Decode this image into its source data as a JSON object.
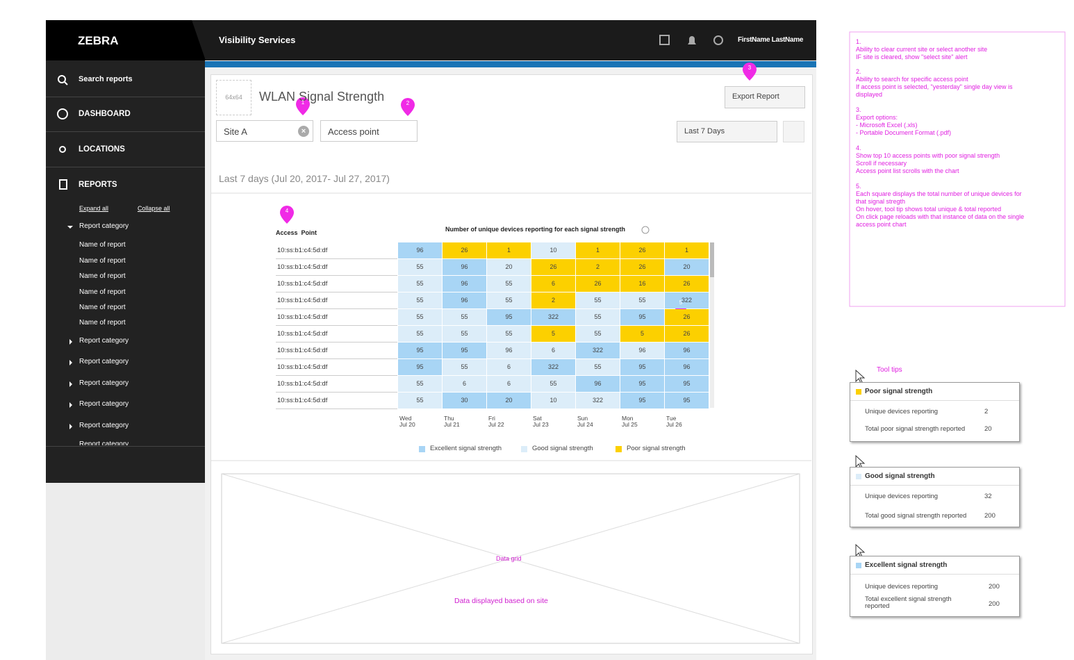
{
  "header": {
    "logo": "ZEBRA",
    "app_title": "Visibility Services",
    "user": "FirstName LastName"
  },
  "sidebar": {
    "search": "Search reports",
    "nav": [
      "DASHBOARD",
      "LOCATIONS",
      "REPORTS"
    ],
    "expand": "Expand all",
    "collapse": "Collapse all",
    "open_category": "Report category",
    "reports": [
      "Name of report",
      "Name of report",
      "Name of report",
      "Name of report",
      "Name of report",
      "Name of report"
    ],
    "categories": [
      "Report category",
      "Report category",
      "Report category",
      "Report category",
      "Report category",
      "Report category"
    ]
  },
  "report": {
    "placeholder": "64x64",
    "title": "WLAN Signal Strength",
    "site": "Site A",
    "search": "Access point",
    "export": "Export Report",
    "range": "Last 7 Days",
    "period": "Last 7 days (Jul 20, 2017- Jul 27, 2017)"
  },
  "heatmap": {
    "row_header": "Access  Point",
    "title": "Number of unique devices reporting for each signal strength",
    "rows": [
      "10:ss:b1:c4:5d:df",
      "10:ss:b1:c4:5d:df",
      "10:ss:b1:c4:5d:df",
      "10:ss:b1:c4:5d:df",
      "10:ss:b1:c4:5d:df",
      "10:ss:b1:c4:5d:df",
      "10:ss:b1:c4:5d:df",
      "10:ss:b1:c4:5d:df",
      "10:ss:b1:c4:5d:df",
      "10:ss:b1:c4:5d:df"
    ],
    "days": [
      {
        "day": "Wed",
        "date": "Jul 20"
      },
      {
        "day": "Thu",
        "date": "Jul 21"
      },
      {
        "day": "Fri",
        "date": "Jul 22"
      },
      {
        "day": "Sat",
        "date": "Jul 23"
      },
      {
        "day": "Sun",
        "date": "Jul 24"
      },
      {
        "day": "Mon",
        "date": "Jul 25"
      },
      {
        "day": "Tue",
        "date": "Jul 26"
      }
    ],
    "values": [
      [
        96,
        26,
        1,
        10,
        1,
        26,
        1
      ],
      [
        55,
        96,
        20,
        26,
        2,
        26,
        20
      ],
      [
        55,
        96,
        55,
        6,
        26,
        16,
        26
      ],
      [
        55,
        96,
        55,
        2,
        55,
        55,
        322
      ],
      [
        55,
        55,
        95,
        322,
        55,
        95,
        26
      ],
      [
        55,
        55,
        55,
        5,
        55,
        5,
        26
      ],
      [
        95,
        95,
        96,
        6,
        322,
        96,
        96
      ],
      [
        95,
        55,
        6,
        322,
        55,
        95,
        96
      ],
      [
        55,
        6,
        6,
        55,
        96,
        95,
        95
      ],
      [
        55,
        30,
        20,
        10,
        322,
        95,
        95
      ]
    ],
    "levels": [
      [
        0,
        2,
        2,
        1,
        2,
        2,
        2
      ],
      [
        1,
        0,
        1,
        2,
        2,
        2,
        0
      ],
      [
        1,
        0,
        1,
        2,
        2,
        2,
        2
      ],
      [
        1,
        0,
        1,
        2,
        1,
        1,
        0
      ],
      [
        1,
        1,
        0,
        0,
        1,
        0,
        2
      ],
      [
        1,
        1,
        1,
        2,
        1,
        2,
        2
      ],
      [
        0,
        0,
        1,
        1,
        0,
        1,
        0
      ],
      [
        0,
        1,
        1,
        0,
        1,
        0,
        0
      ],
      [
        1,
        1,
        1,
        1,
        0,
        0,
        0
      ],
      [
        1,
        0,
        0,
        1,
        1,
        0,
        0
      ]
    ],
    "legend": [
      {
        "label": "Excellent signal strength",
        "color": "#a8d5f5"
      },
      {
        "label": "Good signal strength",
        "color": "#dcedf9"
      },
      {
        "label": "Poor signal strength",
        "color": "#fcd000"
      }
    ]
  },
  "markers": [
    "1",
    "2",
    "3",
    "4",
    "5"
  ],
  "data_grid": {
    "label": "Data grid",
    "caption": "Data displayed based on site"
  },
  "notes": [
    [
      "1.",
      "Ability to clear current site or select another site",
      "IF site is cleared, show \"select site\" alert"
    ],
    [
      "2.",
      "Ability to search for specific access point",
      "If access point is selected, \"yesterday\" single day view is",
      "displayed"
    ],
    [
      "3.",
      "Export options:",
      "- Microsoft Excel (.xls)",
      "- Portable Document Format (.pdf)"
    ],
    [
      "4.",
      "Show top 10 access points with poor signal strength",
      "Scroll if necessary",
      "Access point list scrolls with the chart"
    ],
    [
      "5.",
      "Each square displays the total number of unique devices for",
      "that signal stregth",
      "On hover, tool tip shows total unique & total reported",
      "On click page reloads with that instance of data on the single",
      "access point chart"
    ]
  ],
  "tooltips_label": "Tool tips",
  "tooltips": [
    {
      "title": "Poor signal strength",
      "color": "#fcd000",
      "rows": [
        {
          "label": "Unique devices reporting",
          "value": 2
        },
        {
          "label": "Total poor signal strength reported",
          "value": 20
        }
      ]
    },
    {
      "title": "Good signal strength",
      "color": "#dcedf9",
      "rows": [
        {
          "label": "Unique devices reporting",
          "value": 32
        },
        {
          "label": "Total good signal strength reported",
          "value": 200
        }
      ]
    },
    {
      "title": "Excellent signal strength",
      "color": "#a8d5f5",
      "rows": [
        {
          "label": "Unique devices reporting",
          "value": 200
        },
        {
          "label": "Total excellent signal strength reported",
          "value": 200
        }
      ]
    }
  ]
}
